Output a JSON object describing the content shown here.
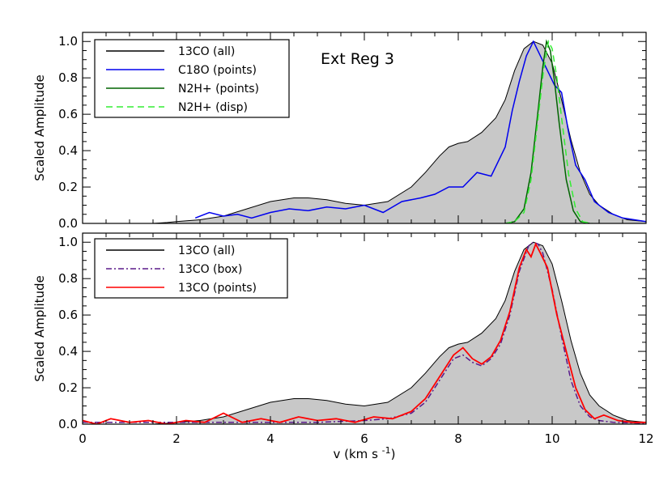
{
  "chart_data": [
    {
      "type": "line",
      "panel": "top",
      "annotation": "Ext Reg  3",
      "xlim": [
        0,
        12
      ],
      "ylim": [
        0,
        1.05
      ],
      "ylabel": "Scaled Amplitude",
      "xticks": [
        "0",
        "2",
        "4",
        "6",
        "8",
        "10",
        "12"
      ],
      "yticks": [
        {
          "v": 0.0,
          "label": "0.0"
        },
        {
          "v": 0.2,
          "label": "0.2"
        },
        {
          "v": 0.4,
          "label": "0.4"
        },
        {
          "v": 0.6,
          "label": "0.6"
        },
        {
          "v": 0.8,
          "label": "0.8"
        },
        {
          "v": 1.0,
          "label": "1.0"
        }
      ],
      "legend_position": "top-left",
      "series": [
        {
          "name": "13CO (all)",
          "style": "fill",
          "color": "#000000",
          "fill": "#c8c8c8",
          "x": [
            0,
            1.5,
            1.8,
            2.0,
            2.5,
            3.0,
            3.5,
            4.0,
            4.5,
            4.8,
            5.2,
            5.6,
            6.0,
            6.5,
            7.0,
            7.3,
            7.6,
            7.8,
            8.0,
            8.2,
            8.5,
            8.8,
            9.0,
            9.2,
            9.4,
            9.6,
            9.8,
            10.0,
            10.2,
            10.4,
            10.6,
            10.8,
            11.0,
            11.3,
            11.6,
            12.0
          ],
          "y": [
            0,
            0,
            0.005,
            0.01,
            0.02,
            0.04,
            0.08,
            0.12,
            0.14,
            0.14,
            0.13,
            0.11,
            0.1,
            0.12,
            0.2,
            0.28,
            0.37,
            0.42,
            0.44,
            0.45,
            0.5,
            0.58,
            0.68,
            0.84,
            0.96,
            1.0,
            0.98,
            0.88,
            0.68,
            0.46,
            0.28,
            0.16,
            0.1,
            0.05,
            0.02,
            0.01
          ]
        },
        {
          "name": "C18O (points)",
          "style": "line",
          "color": "#0000ee",
          "x": [
            2.4,
            2.7,
            3.0,
            3.3,
            3.6,
            4.0,
            4.4,
            4.8,
            5.2,
            5.6,
            6.0,
            6.4,
            6.8,
            7.2,
            7.5,
            7.8,
            8.1,
            8.4,
            8.7,
            9.0,
            9.15,
            9.3,
            9.45,
            9.6,
            9.75,
            9.9,
            10.05,
            10.2,
            10.35,
            10.5,
            10.7,
            10.9,
            11.2,
            11.5,
            12.0
          ],
          "y": [
            0.03,
            0.06,
            0.04,
            0.05,
            0.03,
            0.06,
            0.08,
            0.07,
            0.09,
            0.08,
            0.1,
            0.06,
            0.12,
            0.14,
            0.16,
            0.2,
            0.2,
            0.28,
            0.26,
            0.42,
            0.62,
            0.78,
            0.92,
            1.0,
            0.92,
            0.84,
            0.76,
            0.72,
            0.5,
            0.32,
            0.24,
            0.12,
            0.06,
            0.03,
            0.01
          ]
        },
        {
          "name": "N2H+ (points)",
          "style": "line",
          "color": "#006400",
          "x": [
            9.0,
            9.2,
            9.4,
            9.55,
            9.7,
            9.8,
            9.88,
            9.96,
            10.05,
            10.15,
            10.3,
            10.45,
            10.6,
            10.8
          ],
          "y": [
            0,
            0.01,
            0.08,
            0.28,
            0.62,
            0.86,
            1.0,
            0.95,
            0.78,
            0.55,
            0.24,
            0.07,
            0.01,
            0
          ]
        },
        {
          "name": "N2H+ (disp)",
          "style": "dashed",
          "color": "#33ee33",
          "x": [
            9.0,
            9.2,
            9.4,
            9.55,
            9.7,
            9.82,
            9.92,
            10.0,
            10.1,
            10.2,
            10.35,
            10.5,
            10.65,
            10.85
          ],
          "y": [
            0,
            0.01,
            0.06,
            0.24,
            0.58,
            0.85,
            1.0,
            0.96,
            0.8,
            0.58,
            0.27,
            0.08,
            0.01,
            0
          ]
        }
      ]
    },
    {
      "type": "line",
      "panel": "bottom",
      "xlim": [
        0,
        12
      ],
      "ylim": [
        0,
        1.05
      ],
      "xlabel": "v (km s",
      "xlabel_sup": "-1",
      "xlabel_end": ")",
      "ylabel": "Scaled Amplitude",
      "xticks": [
        "0",
        "2",
        "4",
        "6",
        "8",
        "10",
        "12"
      ],
      "yticks": [
        {
          "v": 0.0,
          "label": "0.0"
        },
        {
          "v": 0.2,
          "label": "0.2"
        },
        {
          "v": 0.4,
          "label": "0.4"
        },
        {
          "v": 0.6,
          "label": "0.6"
        },
        {
          "v": 0.8,
          "label": "0.8"
        },
        {
          "v": 1.0,
          "label": "1.0"
        }
      ],
      "legend_position": "top-left",
      "series": [
        {
          "name": "13CO (all)",
          "style": "fill",
          "color": "#000000",
          "fill": "#c8c8c8",
          "x": [
            0,
            1.5,
            1.8,
            2.0,
            2.5,
            3.0,
            3.5,
            4.0,
            4.5,
            4.8,
            5.2,
            5.6,
            6.0,
            6.5,
            7.0,
            7.3,
            7.6,
            7.8,
            8.0,
            8.2,
            8.5,
            8.8,
            9.0,
            9.2,
            9.4,
            9.6,
            9.8,
            10.0,
            10.2,
            10.4,
            10.6,
            10.8,
            11.0,
            11.3,
            11.6,
            12.0
          ],
          "y": [
            0,
            0,
            0.005,
            0.01,
            0.02,
            0.04,
            0.08,
            0.12,
            0.14,
            0.14,
            0.13,
            0.11,
            0.1,
            0.12,
            0.2,
            0.28,
            0.37,
            0.42,
            0.44,
            0.45,
            0.5,
            0.58,
            0.68,
            0.84,
            0.96,
            1.0,
            0.98,
            0.88,
            0.68,
            0.46,
            0.28,
            0.16,
            0.1,
            0.05,
            0.02,
            0.01
          ]
        },
        {
          "name": "13CO (box)",
          "style": "dashdot",
          "color": "#5a1a8a",
          "x": [
            0,
            2,
            4,
            5,
            6,
            6.5,
            7.0,
            7.3,
            7.6,
            7.9,
            8.1,
            8.3,
            8.5,
            8.7,
            8.9,
            9.1,
            9.3,
            9.5,
            9.6,
            9.7,
            9.8,
            10.0,
            10.2,
            10.4,
            10.6,
            10.8,
            11.0,
            11.3,
            12.0
          ],
          "y": [
            0.01,
            0.01,
            0.01,
            0.01,
            0.02,
            0.03,
            0.06,
            0.12,
            0.24,
            0.36,
            0.38,
            0.34,
            0.32,
            0.36,
            0.44,
            0.6,
            0.84,
            0.98,
            1.0,
            0.99,
            0.94,
            0.74,
            0.48,
            0.24,
            0.1,
            0.04,
            0.02,
            0.01,
            0.005
          ]
        },
        {
          "name": "13CO (points)",
          "style": "line",
          "color": "#ff0000",
          "x": [
            0,
            0.3,
            0.6,
            1.0,
            1.4,
            1.8,
            2.2,
            2.6,
            3.0,
            3.4,
            3.8,
            4.2,
            4.6,
            5.0,
            5.4,
            5.8,
            6.2,
            6.6,
            7.0,
            7.3,
            7.6,
            7.9,
            8.1,
            8.3,
            8.5,
            8.7,
            8.9,
            9.1,
            9.3,
            9.45,
            9.55,
            9.65,
            9.75,
            9.9,
            10.1,
            10.3,
            10.5,
            10.7,
            10.9,
            11.1,
            11.4,
            11.7,
            12.0
          ],
          "y": [
            0.02,
            0.0,
            0.03,
            0.01,
            0.02,
            0.0,
            0.02,
            0.01,
            0.06,
            0.01,
            0.03,
            0.01,
            0.04,
            0.02,
            0.03,
            0.01,
            0.04,
            0.03,
            0.07,
            0.14,
            0.26,
            0.38,
            0.42,
            0.36,
            0.33,
            0.37,
            0.46,
            0.62,
            0.86,
            0.96,
            0.92,
            0.99,
            0.94,
            0.86,
            0.6,
            0.4,
            0.2,
            0.08,
            0.03,
            0.05,
            0.02,
            0.01,
            0.01
          ]
        }
      ]
    }
  ]
}
